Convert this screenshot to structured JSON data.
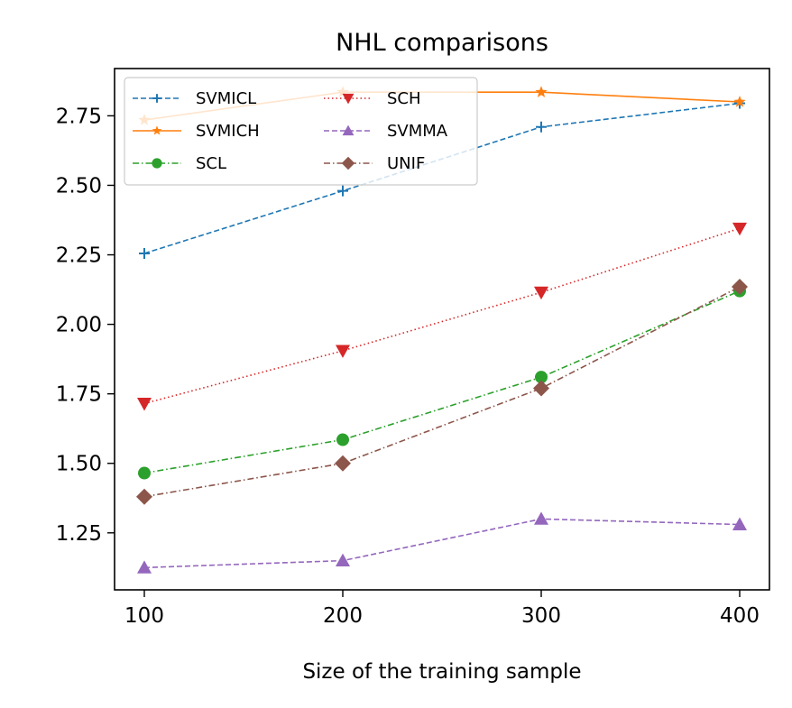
{
  "chart_data": {
    "type": "line",
    "title": "NHL comparisons",
    "xlabel": "Size of the training sample",
    "ylabel": "",
    "x": [
      100,
      200,
      300,
      400
    ],
    "xticks": [
      100,
      200,
      300,
      400
    ],
    "xtick_labels": [
      "100",
      "200",
      "300",
      "400"
    ],
    "yticks": [
      1.25,
      1.5,
      1.75,
      2.0,
      2.25,
      2.5,
      2.75
    ],
    "ytick_labels": [
      "1.25",
      "1.50",
      "1.75",
      "2.00",
      "2.25",
      "2.50",
      "2.75"
    ],
    "xlim": [
      85,
      415
    ],
    "ylim": [
      1.045,
      2.92
    ],
    "legend_position": "top-left",
    "legend_columns": 2,
    "series": [
      {
        "name": "SVMICL",
        "color": "#1f77b4",
        "dash": "dashed",
        "marker": "plus",
        "values": [
          2.255,
          2.48,
          2.71,
          2.795
        ]
      },
      {
        "name": "SVMICH",
        "color": "#ff7f0e",
        "dash": "solid",
        "marker": "star",
        "values": [
          2.735,
          2.835,
          2.835,
          2.8
        ]
      },
      {
        "name": "SCL",
        "color": "#2ca02c",
        "dash": "dashdot",
        "marker": "circle",
        "values": [
          1.465,
          1.585,
          1.81,
          2.12
        ]
      },
      {
        "name": "SCH",
        "color": "#d62728",
        "dash": "dotted",
        "marker": "triangle-down",
        "values": [
          1.715,
          1.905,
          2.115,
          2.345
        ]
      },
      {
        "name": "SVMMA",
        "color": "#9467bd",
        "dash": "dashed",
        "marker": "triangle-up",
        "values": [
          1.125,
          1.15,
          1.3,
          1.28
        ]
      },
      {
        "name": "UNIF",
        "color": "#8c564b",
        "dash": "dashdot",
        "marker": "diamond",
        "values": [
          1.38,
          1.5,
          1.77,
          2.135
        ]
      }
    ]
  }
}
